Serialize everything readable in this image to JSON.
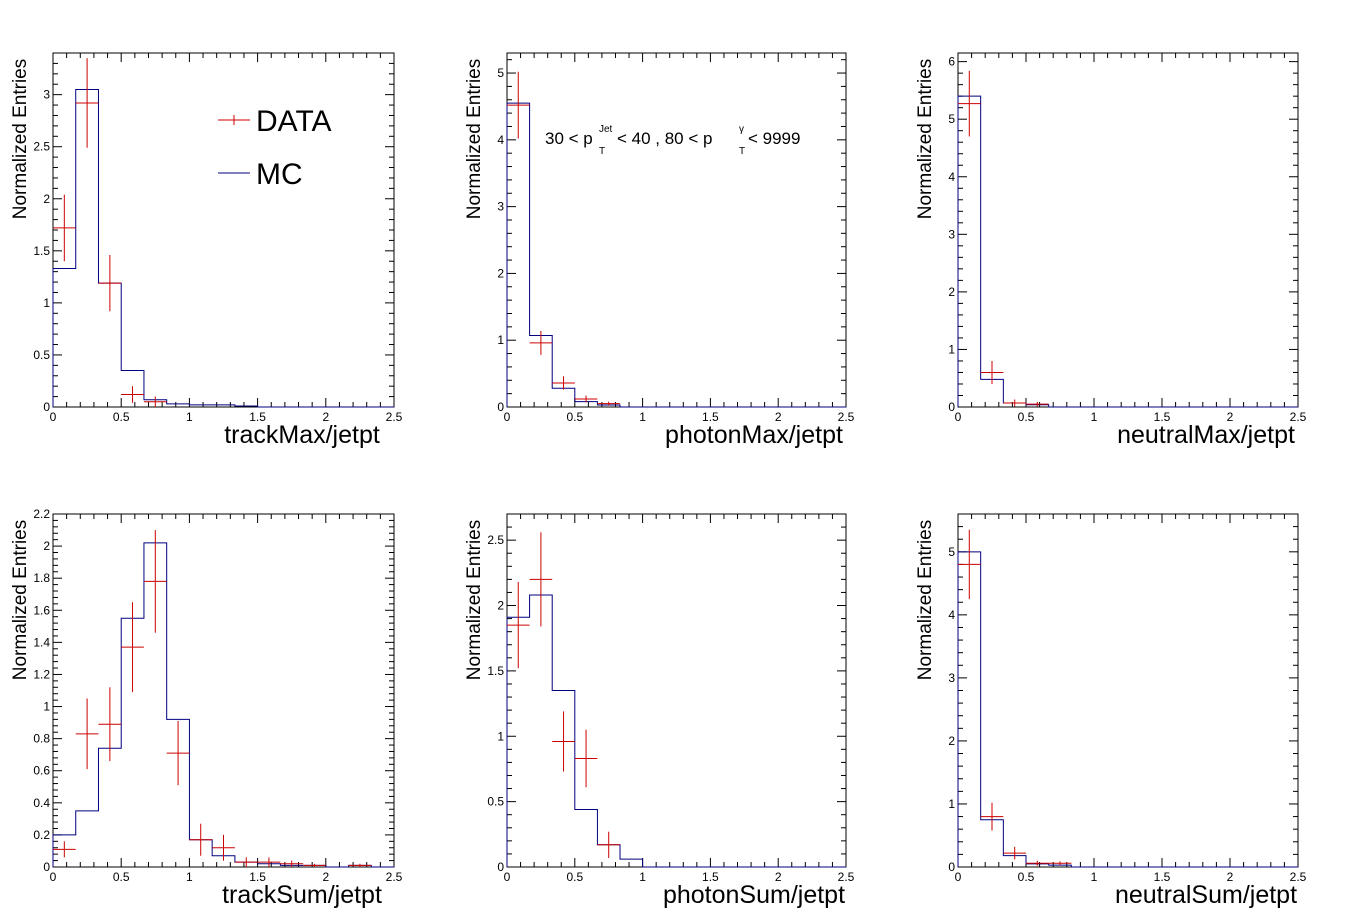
{
  "colors": {
    "data": "#cc0000",
    "mc": "#000080",
    "axis": "#000000"
  },
  "legend": {
    "data_label": "DATA",
    "mc_label": "MC"
  },
  "annotation": {
    "a1": "30 < p",
    "sup1": "Jet",
    "sub1": "T",
    "a2": " < 40  ,  80 < p",
    "sup2": "γ",
    "sub2": "T",
    "a3": " < 9999"
  },
  "chart_data": [
    {
      "type": "bar",
      "xlabel": "trackMax/jetpt",
      "ylabel": "Normalized Entries",
      "xlim": [
        0,
        2.5
      ],
      "ylim": [
        0,
        3.4
      ],
      "xticks": [
        "0",
        "0.5",
        "1",
        "1.5",
        "2",
        "2.5"
      ],
      "yticks": [
        "0",
        "0.5",
        "1",
        "1.5",
        "2",
        "2.5",
        "3"
      ],
      "bin_width": 0.1667,
      "mc": [
        1.33,
        3.05,
        1.19,
        0.35,
        0.07,
        0.03,
        0.02,
        0.02,
        0.01,
        0.0,
        0.0,
        0.0,
        0.0,
        0.0,
        0.0
      ],
      "data": [
        {
          "x": 0.083,
          "y": 1.72,
          "err": 0.32
        },
        {
          "x": 0.25,
          "y": 2.92,
          "err": 0.43
        },
        {
          "x": 0.417,
          "y": 1.19,
          "err": 0.27
        },
        {
          "x": 0.583,
          "y": 0.12,
          "err": 0.08
        },
        {
          "x": 0.75,
          "y": 0.05,
          "err": 0.05
        }
      ]
    },
    {
      "type": "bar",
      "xlabel": "photonMax/jetpt",
      "ylabel": "Normalized Entries",
      "xlim": [
        0,
        2.5
      ],
      "ylim": [
        0,
        5.3
      ],
      "xticks": [
        "0",
        "0.5",
        "1",
        "1.5",
        "2",
        "2.5"
      ],
      "yticks": [
        "0",
        "1",
        "2",
        "3",
        "4",
        "5"
      ],
      "bin_width": 0.1667,
      "mc": [
        4.55,
        1.07,
        0.28,
        0.08,
        0.03,
        0.0,
        0.0,
        0.0,
        0.0,
        0.0,
        0.0,
        0.0,
        0.0,
        0.0,
        0.0
      ],
      "data": [
        {
          "x": 0.083,
          "y": 4.52,
          "err": 0.5
        },
        {
          "x": 0.25,
          "y": 0.96,
          "err": 0.18
        },
        {
          "x": 0.417,
          "y": 0.36,
          "err": 0.1
        },
        {
          "x": 0.583,
          "y": 0.12,
          "err": 0.05
        },
        {
          "x": 0.75,
          "y": 0.05,
          "err": 0.03
        }
      ]
    },
    {
      "type": "bar",
      "xlabel": "neutralMax/jetpt",
      "ylabel": "Normalized Entries",
      "xlim": [
        0,
        2.5
      ],
      "ylim": [
        0,
        6.15
      ],
      "xticks": [
        "0",
        "0.5",
        "1",
        "1.5",
        "2",
        "2.5"
      ],
      "yticks": [
        "0",
        "1",
        "2",
        "3",
        "4",
        "5",
        "6"
      ],
      "bin_width": 0.1667,
      "mc": [
        5.4,
        0.48,
        0.07,
        0.04,
        0.0,
        0.0,
        0.0,
        0.0,
        0.0,
        0.0,
        0.0,
        0.0,
        0.0,
        0.0,
        0.0
      ],
      "data": [
        {
          "x": 0.083,
          "y": 5.27,
          "err": 0.57
        },
        {
          "x": 0.25,
          "y": 0.6,
          "err": 0.2
        },
        {
          "x": 0.417,
          "y": 0.07,
          "err": 0.06
        },
        {
          "x": 0.583,
          "y": 0.05,
          "err": 0.04
        }
      ]
    },
    {
      "type": "bar",
      "xlabel": "trackSum/jetpt",
      "ylabel": "Normalized Entries",
      "xlim": [
        0,
        2.5
      ],
      "ylim": [
        0,
        2.2
      ],
      "xticks": [
        "0",
        "0.5",
        "1",
        "1.5",
        "2",
        "2.5"
      ],
      "yticks": [
        "0",
        "0.2",
        "0.4",
        "0.6",
        "0.8",
        "1",
        "1.2",
        "1.4",
        "1.6",
        "1.8",
        "2",
        "2.2"
      ],
      "bin_width": 0.1667,
      "mc": [
        0.2,
        0.35,
        0.74,
        1.55,
        2.02,
        0.92,
        0.17,
        0.07,
        0.03,
        0.02,
        0.01,
        0.01,
        0.0,
        0.01,
        0.0
      ],
      "data": [
        {
          "x": 0.083,
          "y": 0.11,
          "err": 0.05
        },
        {
          "x": 0.25,
          "y": 0.83,
          "err": 0.22
        },
        {
          "x": 0.417,
          "y": 0.89,
          "err": 0.23
        },
        {
          "x": 0.583,
          "y": 1.37,
          "err": 0.28
        },
        {
          "x": 0.75,
          "y": 1.78,
          "err": 0.32
        },
        {
          "x": 0.917,
          "y": 0.71,
          "err": 0.2
        },
        {
          "x": 1.083,
          "y": 0.17,
          "err": 0.1
        },
        {
          "x": 1.25,
          "y": 0.12,
          "err": 0.08
        },
        {
          "x": 1.417,
          "y": 0.03,
          "err": 0.03
        },
        {
          "x": 1.583,
          "y": 0.03,
          "err": 0.03
        },
        {
          "x": 1.75,
          "y": 0.02,
          "err": 0.02
        },
        {
          "x": 1.917,
          "y": 0.01,
          "err": 0.01
        },
        {
          "x": 2.25,
          "y": 0.01,
          "err": 0.01
        }
      ]
    },
    {
      "type": "bar",
      "xlabel": "photonSum/jetpt",
      "ylabel": "Normalized Entries",
      "xlim": [
        0,
        2.5
      ],
      "ylim": [
        0,
        2.7
      ],
      "xticks": [
        "0",
        "0.5",
        "1",
        "1.5",
        "2",
        "2.5"
      ],
      "yticks": [
        "0",
        "0.5",
        "1",
        "1.5",
        "2",
        "2.5"
      ],
      "bin_width": 0.1667,
      "mc": [
        1.91,
        2.08,
        1.35,
        0.44,
        0.17,
        0.06,
        0.0,
        0.0,
        0.0,
        0.0,
        0.0,
        0.0,
        0.0,
        0.0,
        0.0
      ],
      "data": [
        {
          "x": 0.083,
          "y": 1.85,
          "err": 0.33
        },
        {
          "x": 0.25,
          "y": 2.2,
          "err": 0.36
        },
        {
          "x": 0.417,
          "y": 0.96,
          "err": 0.23
        },
        {
          "x": 0.583,
          "y": 0.83,
          "err": 0.22
        },
        {
          "x": 0.75,
          "y": 0.17,
          "err": 0.1
        }
      ]
    },
    {
      "type": "bar",
      "xlabel": "neutralSum/jetpt",
      "ylabel": "Normalized Entries",
      "xlim": [
        0,
        2.5
      ],
      "ylim": [
        0,
        5.6
      ],
      "xticks": [
        "0",
        "0.5",
        "1",
        "1.5",
        "2",
        "2.5"
      ],
      "yticks": [
        "0",
        "1",
        "2",
        "3",
        "4",
        "5"
      ],
      "bin_width": 0.1667,
      "mc": [
        5.0,
        0.75,
        0.18,
        0.05,
        0.03,
        0.0,
        0.0,
        0.0,
        0.0,
        0.0,
        0.0,
        0.0,
        0.0,
        0.0,
        0.0
      ],
      "data": [
        {
          "x": 0.083,
          "y": 4.8,
          "err": 0.55
        },
        {
          "x": 0.25,
          "y": 0.8,
          "err": 0.22
        },
        {
          "x": 0.417,
          "y": 0.22,
          "err": 0.1
        },
        {
          "x": 0.583,
          "y": 0.06,
          "err": 0.04
        },
        {
          "x": 0.75,
          "y": 0.06,
          "err": 0.03
        }
      ]
    }
  ]
}
